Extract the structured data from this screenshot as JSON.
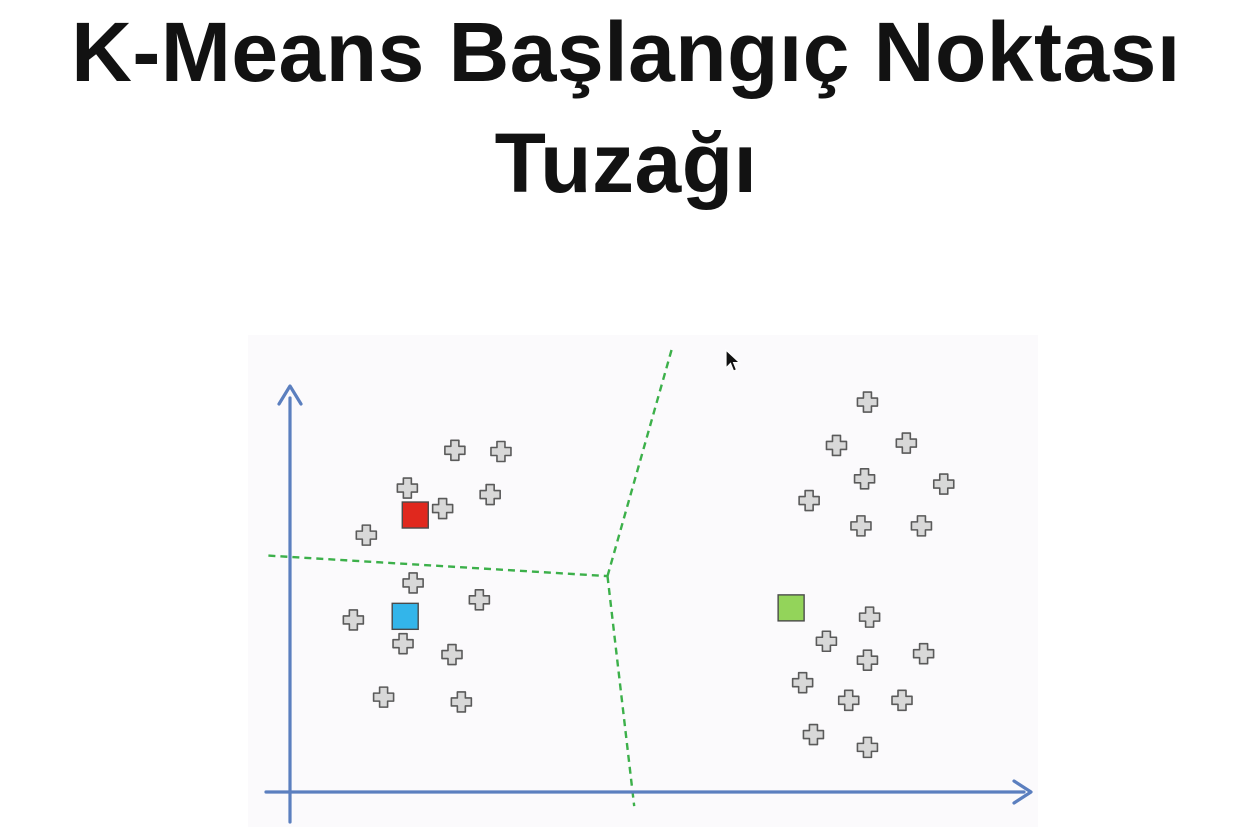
{
  "title": {
    "line1": "K-Means Başlangıç Noktası",
    "line2": "Tuzağı"
  },
  "colors": {
    "axis": "#5b7fbf",
    "boundary": "#3cb04a",
    "plot_background": "#fbfafc",
    "point_fill": "#d8d8d8",
    "point_stroke": "#5a5a5a",
    "centroid_red": "#e0281e",
    "centroid_blue": "#33b5ea",
    "centroid_green": "#93d45a"
  },
  "icons": {
    "cursor": "mouse-pointer-icon",
    "point": "plus-marker-icon"
  },
  "chart_data": {
    "type": "scatter",
    "title": "",
    "xlabel": "",
    "ylabel": "",
    "xlim": [
      0,
      100
    ],
    "ylim": [
      0,
      100
    ],
    "grid": false,
    "axes_tick_labels": false,
    "points": [
      {
        "x": 22.9,
        "y": 85.0
      },
      {
        "x": 29.3,
        "y": 84.7
      },
      {
        "x": 16.3,
        "y": 75.6
      },
      {
        "x": 27.8,
        "y": 74.0
      },
      {
        "x": 21.2,
        "y": 70.5
      },
      {
        "x": 10.6,
        "y": 63.9
      },
      {
        "x": 17.1,
        "y": 52.0
      },
      {
        "x": 26.3,
        "y": 47.8
      },
      {
        "x": 8.8,
        "y": 42.8
      },
      {
        "x": 15.7,
        "y": 36.9
      },
      {
        "x": 22.5,
        "y": 34.2
      },
      {
        "x": 13.0,
        "y": 23.6
      },
      {
        "x": 23.8,
        "y": 22.4
      },
      {
        "x": 80.2,
        "y": 97.0
      },
      {
        "x": 75.9,
        "y": 86.2
      },
      {
        "x": 85.6,
        "y": 86.8
      },
      {
        "x": 79.8,
        "y": 77.9
      },
      {
        "x": 90.8,
        "y": 76.6
      },
      {
        "x": 72.1,
        "y": 72.5
      },
      {
        "x": 79.3,
        "y": 66.2
      },
      {
        "x": 87.7,
        "y": 66.2
      },
      {
        "x": 80.5,
        "y": 43.5
      },
      {
        "x": 74.5,
        "y": 37.5
      },
      {
        "x": 80.2,
        "y": 32.8
      },
      {
        "x": 88.0,
        "y": 34.4
      },
      {
        "x": 71.2,
        "y": 27.2
      },
      {
        "x": 77.6,
        "y": 22.8
      },
      {
        "x": 85.0,
        "y": 22.8
      },
      {
        "x": 72.7,
        "y": 14.3
      },
      {
        "x": 80.2,
        "y": 11.1
      }
    ],
    "centroids": [
      {
        "color": "red",
        "x": 17.4,
        "y": 68.9
      },
      {
        "color": "blue",
        "x": 16.0,
        "y": 43.7
      },
      {
        "color": "green",
        "x": 69.6,
        "y": 45.8
      }
    ],
    "boundaries": [
      {
        "points": [
          [
            -3.0,
            58.8
          ],
          [
            44.1,
            53.7
          ]
        ]
      },
      {
        "points": [
          [
            44.1,
            53.7
          ],
          [
            53.0,
            110.0
          ]
        ]
      },
      {
        "points": [
          [
            44.1,
            53.7
          ],
          [
            47.8,
            -3.5
          ]
        ]
      }
    ]
  }
}
